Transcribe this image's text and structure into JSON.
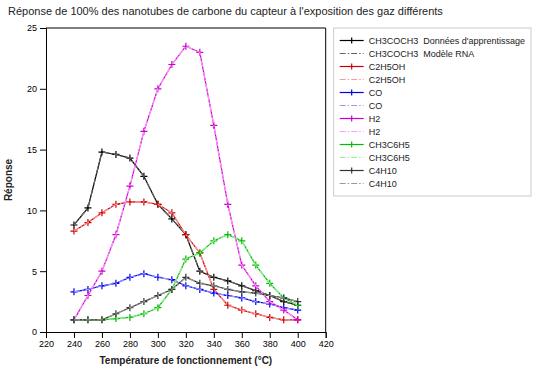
{
  "chart_data": {
    "type": "line",
    "title": "Réponse de 100% des nanotubes de carbone du capteur à l'exposition des gaz différents",
    "xlabel": "Température de fonctionnement (°C)",
    "ylabel": "Réponse",
    "xlim": [
      220,
      420
    ],
    "ylim": [
      0,
      25
    ],
    "xticks": [
      220,
      240,
      260,
      280,
      300,
      320,
      340,
      360,
      380,
      400,
      420
    ],
    "yticks": [
      0,
      5,
      10,
      15,
      20,
      25
    ],
    "grid": false,
    "legend": "upper right",
    "x": [
      240,
      250,
      260,
      270,
      280,
      290,
      300,
      310,
      320,
      330,
      340,
      350,
      360,
      370,
      380,
      390,
      400
    ],
    "series": [
      {
        "name": "CH3COCH3  Données d'apprentissage",
        "color": "#000000",
        "line_style": "solid",
        "marker": "plus",
        "values": [
          8.8,
          10.2,
          14.8,
          14.6,
          14.3,
          12.8,
          10.5,
          9.3,
          8.0,
          5.0,
          4.5,
          4.2,
          3.8,
          3.4,
          3.0,
          2.5,
          2.2
        ]
      },
      {
        "name": "CH3COCH3  Modèle RNA",
        "color": "#666666",
        "line_style": "dashdot",
        "marker": "none",
        "values": [
          8.8,
          10.2,
          14.8,
          14.6,
          14.3,
          12.8,
          10.5,
          9.3,
          8.0,
          5.0,
          4.5,
          4.2,
          3.8,
          3.4,
          3.0,
          2.5,
          2.2
        ]
      },
      {
        "name": "C2H5OH",
        "color": "#cc0000",
        "line_style": "solid",
        "marker": "plus",
        "values": [
          8.3,
          9.0,
          9.8,
          10.5,
          10.7,
          10.7,
          10.5,
          9.8,
          8.0,
          6.5,
          3.5,
          2.2,
          1.8,
          1.5,
          1.2,
          1.0,
          1.0
        ]
      },
      {
        "name": "C2H5OH",
        "color": "#ff9999",
        "line_style": "dashdot",
        "marker": "none",
        "values": [
          8.3,
          9.0,
          9.8,
          10.5,
          10.7,
          10.7,
          10.5,
          9.8,
          8.0,
          6.5,
          3.5,
          2.2,
          1.8,
          1.5,
          1.2,
          1.0,
          1.0
        ]
      },
      {
        "name": "CO",
        "color": "#0000ee",
        "line_style": "solid",
        "marker": "plus",
        "values": [
          3.3,
          3.5,
          3.8,
          4.0,
          4.5,
          4.8,
          4.5,
          4.3,
          3.8,
          3.5,
          3.2,
          3.0,
          2.8,
          2.5,
          2.3,
          2.0,
          1.8
        ]
      },
      {
        "name": "CO",
        "color": "#9999ff",
        "line_style": "dashdot",
        "marker": "none",
        "values": [
          3.3,
          3.5,
          3.8,
          4.0,
          4.5,
          4.8,
          4.5,
          4.3,
          3.8,
          3.5,
          3.2,
          3.0,
          2.8,
          2.5,
          2.3,
          2.0,
          1.8
        ]
      },
      {
        "name": "H2",
        "color": "#cc00cc",
        "line_style": "solid",
        "marker": "plus",
        "values": [
          1.0,
          3.0,
          5.0,
          8.0,
          12.0,
          16.5,
          20.0,
          22.0,
          23.5,
          23.0,
          17.0,
          10.5,
          5.5,
          3.8,
          2.5,
          1.8,
          1.0
        ]
      },
      {
        "name": "H2",
        "color": "#ff99ff",
        "line_style": "dashdot",
        "marker": "none",
        "values": [
          1.0,
          3.0,
          5.0,
          8.0,
          12.0,
          16.5,
          20.0,
          22.0,
          23.5,
          23.0,
          17.0,
          10.5,
          5.5,
          3.8,
          2.5,
          1.8,
          1.0
        ]
      },
      {
        "name": "CH3C6H5",
        "color": "#00bb00",
        "line_style": "solid",
        "marker": "plus",
        "values": [
          1.0,
          1.0,
          1.0,
          1.1,
          1.2,
          1.5,
          2.0,
          3.5,
          6.0,
          6.5,
          7.5,
          8.0,
          7.5,
          5.5,
          4.0,
          2.8,
          2.2
        ]
      },
      {
        "name": "CH3C6H5",
        "color": "#99ee99",
        "line_style": "dashdot",
        "marker": "none",
        "values": [
          1.0,
          1.0,
          1.0,
          1.1,
          1.2,
          1.5,
          2.0,
          3.5,
          6.0,
          6.5,
          7.5,
          8.0,
          7.5,
          5.5,
          4.0,
          2.8,
          2.2
        ]
      },
      {
        "name": "C4H10",
        "color": "#333333",
        "line_style": "solid",
        "marker": "plus",
        "values": [
          1.0,
          1.0,
          1.0,
          1.5,
          2.0,
          2.5,
          3.0,
          3.5,
          4.5,
          4.0,
          3.8,
          3.5,
          3.3,
          3.2,
          3.0,
          2.8,
          2.5
        ]
      },
      {
        "name": "C4H10",
        "color": "#999999",
        "line_style": "dashdot",
        "marker": "none",
        "values": [
          1.0,
          1.0,
          1.0,
          1.5,
          2.0,
          2.5,
          3.0,
          3.5,
          4.5,
          4.0,
          3.8,
          3.5,
          3.3,
          3.2,
          3.0,
          2.8,
          2.5
        ]
      }
    ]
  }
}
